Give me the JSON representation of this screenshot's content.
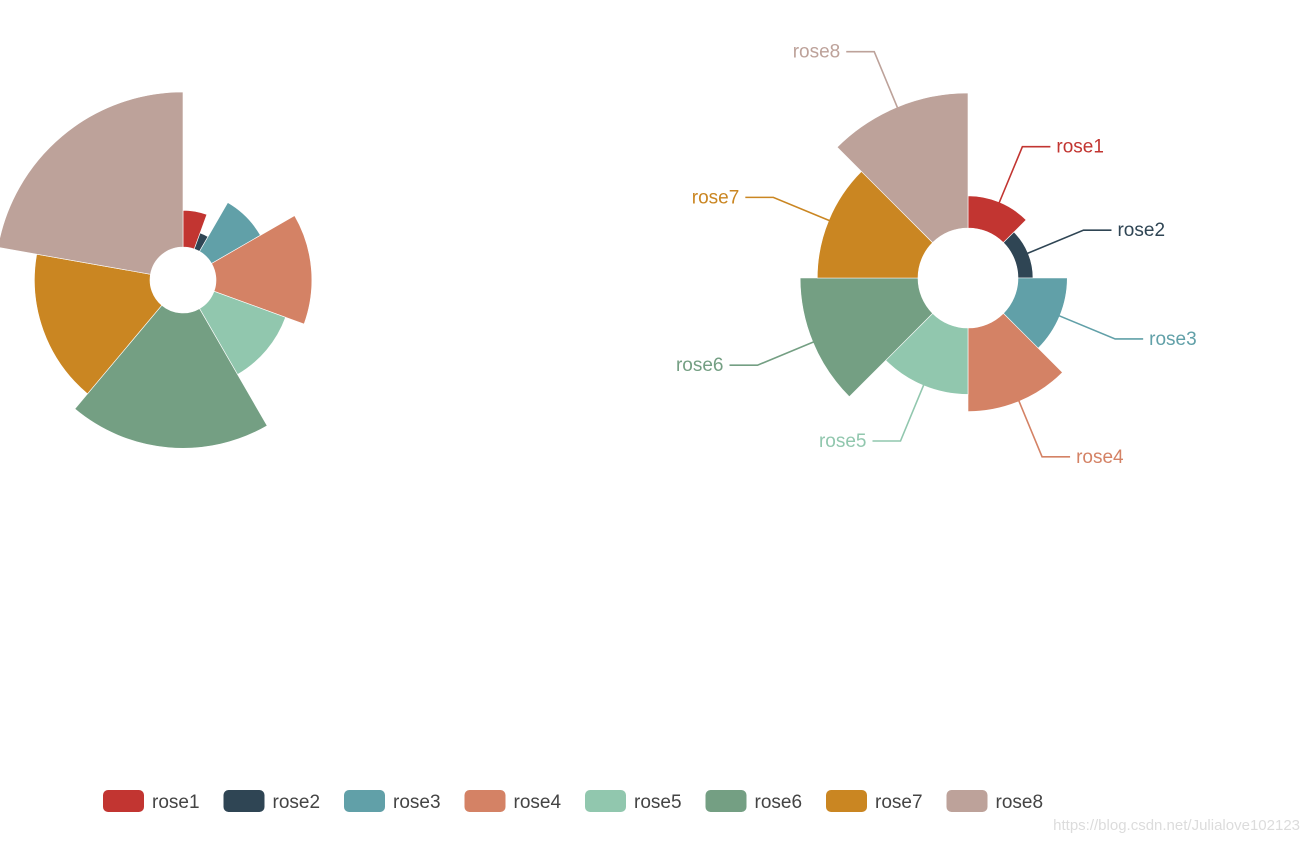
{
  "chart_data": [
    {
      "type": "pie",
      "variant": "nightingale-rose-radius",
      "categories": [
        "rose1",
        "rose2",
        "rose3",
        "rose4",
        "rose5",
        "rose6",
        "rose7",
        "rose8"
      ],
      "values": [
        10,
        5,
        15,
        25,
        20,
        35,
        30,
        40
      ],
      "show_labels": false
    },
    {
      "type": "pie",
      "variant": "nightingale-rose-area",
      "categories": [
        "rose1",
        "rose2",
        "rose3",
        "rose4",
        "rose5",
        "rose6",
        "rose7",
        "rose8"
      ],
      "values": [
        10,
        5,
        15,
        25,
        20,
        35,
        30,
        40
      ],
      "show_labels": true
    }
  ],
  "legend": {
    "placement": "bottom",
    "items": [
      "rose1",
      "rose2",
      "rose3",
      "rose4",
      "rose5",
      "rose6",
      "rose7",
      "rose8"
    ]
  },
  "colors": [
    "#c23531",
    "#2f4554",
    "#61a0a8",
    "#d48265",
    "#91c7ae",
    "#749f83",
    "#ca8622",
    "#bda29a"
  ],
  "watermark": "https://blog.csdn.net/Julialove102123"
}
